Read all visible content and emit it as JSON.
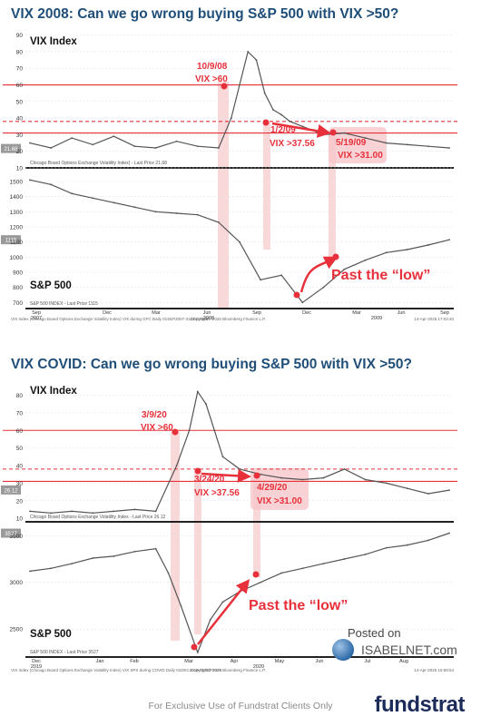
{
  "chart_data": [
    {
      "type": "line",
      "title": "VIX 2008: Can we go wrong buying S&P 500 with VIX >50?",
      "panels": [
        {
          "label": "VIX Index",
          "yticks": [
            10,
            20,
            30,
            40,
            50,
            60,
            70,
            80,
            90
          ],
          "ylim": [
            10,
            92
          ],
          "last_price_label": "Chicago Board Options Exchange Volatility Index) - Last Price 21.68",
          "last_price": "21.68",
          "series": [
            {
              "x": [
                0,
                0.05,
                0.1,
                0.15,
                0.2,
                0.25,
                0.3,
                0.35,
                0.4,
                0.45,
                0.48,
                0.5,
                0.52,
                0.54,
                0.56,
                0.58,
                0.6,
                0.62,
                0.65,
                0.7,
                0.75,
                0.8,
                0.85,
                0.9,
                0.95,
                1.0
              ],
              "y": [
                25,
                22,
                28,
                24,
                29,
                23,
                22,
                26,
                23,
                22,
                40,
                60,
                80,
                75,
                55,
                45,
                42,
                38,
                35,
                30,
                31,
                28,
                25,
                24,
                23,
                22
              ]
            }
          ],
          "reference_lines": [
            {
              "y": 60,
              "color": "#e8303a"
            },
            {
              "y": 38,
              "color": "#e8303a",
              "dashed": true
            },
            {
              "y": 31,
              "color": "#e8303a"
            }
          ]
        },
        {
          "label": "S&P 500",
          "yticks": [
            700,
            800,
            900,
            1000,
            1100,
            1200,
            1300,
            1400,
            1500
          ],
          "ylim": [
            660,
            1560
          ],
          "last_price_label": "S&P 500 INDEX - Last Price 1115",
          "last_price": "1115",
          "series": [
            {
              "x": [
                0,
                0.05,
                0.1,
                0.15,
                0.2,
                0.25,
                0.3,
                0.35,
                0.4,
                0.45,
                0.5,
                0.55,
                0.6,
                0.65,
                0.7,
                0.75,
                0.8,
                0.85,
                0.9,
                0.95,
                1.0
              ],
              "y": [
                1510,
                1480,
                1420,
                1390,
                1360,
                1330,
                1300,
                1290,
                1280,
                1230,
                1100,
                850,
                880,
                700,
                800,
                920,
                980,
                1030,
                1050,
                1080,
                1115
              ]
            }
          ]
        }
      ],
      "xticks": [
        "Sep",
        "Dec",
        "Mar",
        "Jun",
        "Sep",
        "Dec",
        "Mar",
        "Jun",
        "Sep",
        "Dec"
      ],
      "xyears": [
        "2007",
        "2008",
        "2009"
      ],
      "annotations": [
        {
          "text": "10/9/08\nVIX >60"
        },
        {
          "text": "1/2/09\nVIX >37.56"
        },
        {
          "text": "5/19/09\nVIX >31.00"
        },
        {
          "text": "Past the “low”"
        }
      ],
      "source": "VIX Index (Chicago Board Options Exchange Volatility Index) VIX during GFC  Daily 01SEP2007-31DEC2009",
      "copyright": "Copyright© 2025 Bloomberg Finance L.P.",
      "stamp": "14-Apr-2025 17:03:40"
    },
    {
      "type": "line",
      "title": "VIX COVID: Can we go wrong buying S&P 500 with VIX >50?",
      "panels": [
        {
          "label": "VIX Index",
          "yticks": [
            10,
            20,
            30,
            40,
            50,
            60,
            70,
            80
          ],
          "ylim": [
            8,
            88
          ],
          "last_price_label": "Chicago Board Options Exchange Volatility Index - Last Price 26.12",
          "last_price": "26.12",
          "series": [
            {
              "x": [
                0,
                0.05,
                0.1,
                0.15,
                0.2,
                0.25,
                0.3,
                0.35,
                0.38,
                0.4,
                0.42,
                0.44,
                0.46,
                0.5,
                0.55,
                0.6,
                0.65,
                0.7,
                0.75,
                0.8,
                0.85,
                0.9,
                0.95,
                1.0
              ],
              "y": [
                14,
                13,
                14,
                13,
                14,
                15,
                14,
                40,
                60,
                82,
                75,
                60,
                45,
                38,
                35,
                33,
                32,
                33,
                38,
                32,
                30,
                27,
                24,
                26
              ]
            }
          ],
          "reference_lines": [
            {
              "y": 60,
              "color": "#e8303a"
            },
            {
              "y": 38,
              "color": "#e8303a",
              "dashed": true
            },
            {
              "y": 31,
              "color": "#e8303a"
            }
          ]
        },
        {
          "label": "S&P 500",
          "yticks": [
            2500,
            3000,
            3500
          ],
          "ylim": [
            2200,
            3600
          ],
          "last_price_label": "S&P 500 INDEX - Last Price 3527",
          "last_price": "3527",
          "series": [
            {
              "x": [
                0,
                0.05,
                0.1,
                0.15,
                0.2,
                0.25,
                0.3,
                0.33,
                0.36,
                0.4,
                0.43,
                0.46,
                0.5,
                0.55,
                0.6,
                0.65,
                0.7,
                0.75,
                0.8,
                0.85,
                0.9,
                0.95,
                1.0
              ],
              "y": [
                3120,
                3150,
                3200,
                3260,
                3280,
                3330,
                3360,
                3100,
                2750,
                2250,
                2600,
                2790,
                2900,
                3000,
                3100,
                3150,
                3200,
                3250,
                3300,
                3370,
                3400,
                3450,
                3527
              ]
            }
          ]
        }
      ],
      "xticks": [
        "Dec",
        "Jan",
        "Feb",
        "Mar",
        "Apr",
        "May",
        "Jun",
        "Jul",
        "Aug"
      ],
      "xyears": [
        "2019",
        "2020"
      ],
      "annotations": [
        {
          "text": "3/9/20\nVIX >60"
        },
        {
          "text": "3/24/20\nVIX >37.56"
        },
        {
          "text": "4/29/20\nVIX >31.00"
        },
        {
          "text": "Past the “low”"
        }
      ],
      "source": "VIX Index (Chicago Board Options Exchange Volatility Index) VIX SPX during COVID  Daily 01DEC2019-01SEP2020",
      "copyright": "Copyright© 2025 Bloomberg Finance L.P.",
      "stamp": "14-Apr-2025 16:59:54"
    }
  ],
  "watermark": {
    "posted": "Posted on",
    "site": "ISABELNET.com"
  },
  "footer": "For Exclusive Use of Fundstrat Clients Only",
  "brand": "fundstrat",
  "colors": {
    "title": "#1f4e79",
    "accent": "#e8303a",
    "shade": "#f7c7cb",
    "line": "#555555"
  }
}
